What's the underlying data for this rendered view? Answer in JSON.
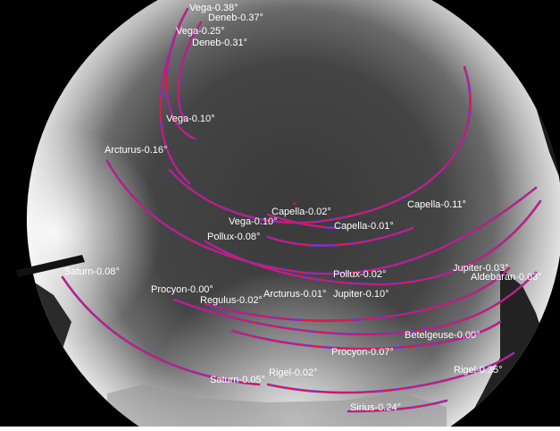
{
  "colors": {
    "sky_center": "#3a3a3a",
    "sky_edge": "#d8d8d8",
    "arc_red": "#ff1030",
    "arc_blue": "#4a3cff",
    "label": "#ffffff"
  },
  "labels": [
    {
      "id": "vega-038",
      "text": "Vega-0.38°"
    },
    {
      "id": "deneb-037",
      "text": "Deneb-0.37°"
    },
    {
      "id": "vega-025",
      "text": "Vega-0.25°"
    },
    {
      "id": "deneb-031",
      "text": "Deneb-0.31°"
    },
    {
      "id": "vega-010-top",
      "text": "Vega-0.10°"
    },
    {
      "id": "arcturus-016",
      "text": "Arcturus-0.16°"
    },
    {
      "id": "capella-011",
      "text": "Capella-0.11°"
    },
    {
      "id": "capella-002",
      "text": "Capella-0.02°"
    },
    {
      "id": "vega-010-mid",
      "text": "Vega-0.10°"
    },
    {
      "id": "capella-001",
      "text": "Capella-0.01°"
    },
    {
      "id": "pollux-008",
      "text": "Pollux-0.08°"
    },
    {
      "id": "jupiter-003",
      "text": "Jupiter-0.03°"
    },
    {
      "id": "aldebaran-003",
      "text": "Aldebaran-0.03°"
    },
    {
      "id": "saturn-008",
      "text": "Saturn-0.08°"
    },
    {
      "id": "pollux-002",
      "text": "Pollux-0.02°"
    },
    {
      "id": "procyon-000",
      "text": "Procyon-0.00°"
    },
    {
      "id": "arcturus-001",
      "text": "Arcturus-0.01°"
    },
    {
      "id": "jupiter-010",
      "text": "Jupiter-0.10°"
    },
    {
      "id": "regulus-002",
      "text": "Regulus-0.02°"
    },
    {
      "id": "betelgeuse-000",
      "text": "Betelgeuse-0.00°"
    },
    {
      "id": "procyon-007",
      "text": "Procyon-0.07°"
    },
    {
      "id": "rigel-035",
      "text": "Rigel-0.35°"
    },
    {
      "id": "saturn-005",
      "text": "Saturn-0.05°"
    },
    {
      "id": "rigel-002",
      "text": "Rigel-0.02°"
    },
    {
      "id": "sirius-024",
      "text": "Sirius-0.24°"
    }
  ]
}
